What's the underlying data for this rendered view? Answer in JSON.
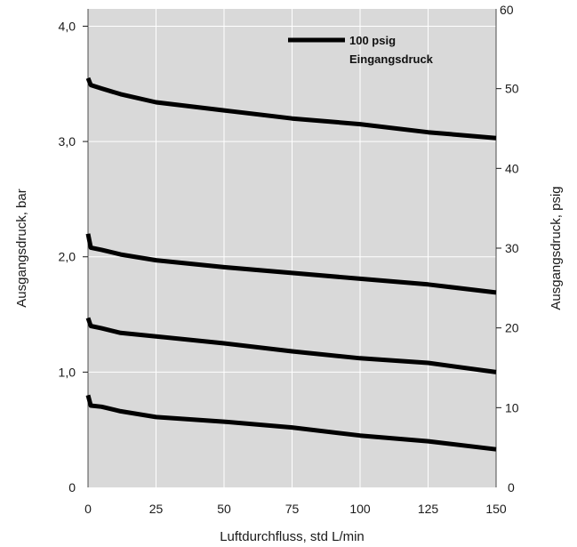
{
  "chart_data": {
    "type": "line",
    "xlabel": "Luftdurchfluss, std L/min",
    "ylabel_left": "Ausgangsdruck, bar",
    "ylabel_right": "Ausgangsdruck, psig",
    "xlim": [
      0,
      150
    ],
    "ylim": [
      0,
      4.15
    ],
    "y2lim": [
      0,
      60
    ],
    "grid": true,
    "x_ticks": [
      0,
      25,
      50,
      75,
      100,
      125,
      150
    ],
    "x_tick_labels": [
      "0",
      "25",
      "50",
      "75",
      "100",
      "125",
      "150"
    ],
    "y_ticks": [
      0,
      1,
      2,
      3,
      4
    ],
    "y_tick_labels": [
      "0",
      "1,0",
      "2,0",
      "3,0",
      "4,0"
    ],
    "y2_ticks": [
      0,
      10,
      20,
      30,
      40,
      50,
      60
    ],
    "y2_tick_labels": [
      "0",
      "10",
      "20",
      "30",
      "40",
      "50",
      "60"
    ],
    "legend": {
      "position": "top-right",
      "label_line1": "100 psig",
      "label_line2": "Eingangsdruck"
    },
    "series": [
      {
        "x": [
          0,
          1,
          5,
          12,
          25,
          50,
          75,
          100,
          125,
          150
        ],
        "y": [
          3.55,
          3.49,
          3.46,
          3.41,
          3.34,
          3.27,
          3.2,
          3.15,
          3.08,
          3.03
        ]
      },
      {
        "x": [
          0,
          1,
          5,
          12,
          25,
          50,
          75,
          100,
          125,
          150
        ],
        "y": [
          2.2,
          2.08,
          2.06,
          2.02,
          1.97,
          1.91,
          1.86,
          1.81,
          1.76,
          1.69
        ]
      },
      {
        "x": [
          0,
          1,
          5,
          12,
          25,
          50,
          75,
          100,
          125,
          150
        ],
        "y": [
          1.47,
          1.4,
          1.38,
          1.34,
          1.31,
          1.25,
          1.18,
          1.12,
          1.08,
          1.0
        ]
      },
      {
        "x": [
          0,
          1,
          5,
          12,
          25,
          50,
          75,
          100,
          125,
          150
        ],
        "y": [
          0.8,
          0.71,
          0.7,
          0.66,
          0.61,
          0.57,
          0.52,
          0.45,
          0.4,
          0.33
        ]
      }
    ]
  },
  "colors": {
    "plot_background": "#d9d9d9",
    "grid": "#ffffff",
    "line": "#000000",
    "text": "#1a1a1a"
  }
}
